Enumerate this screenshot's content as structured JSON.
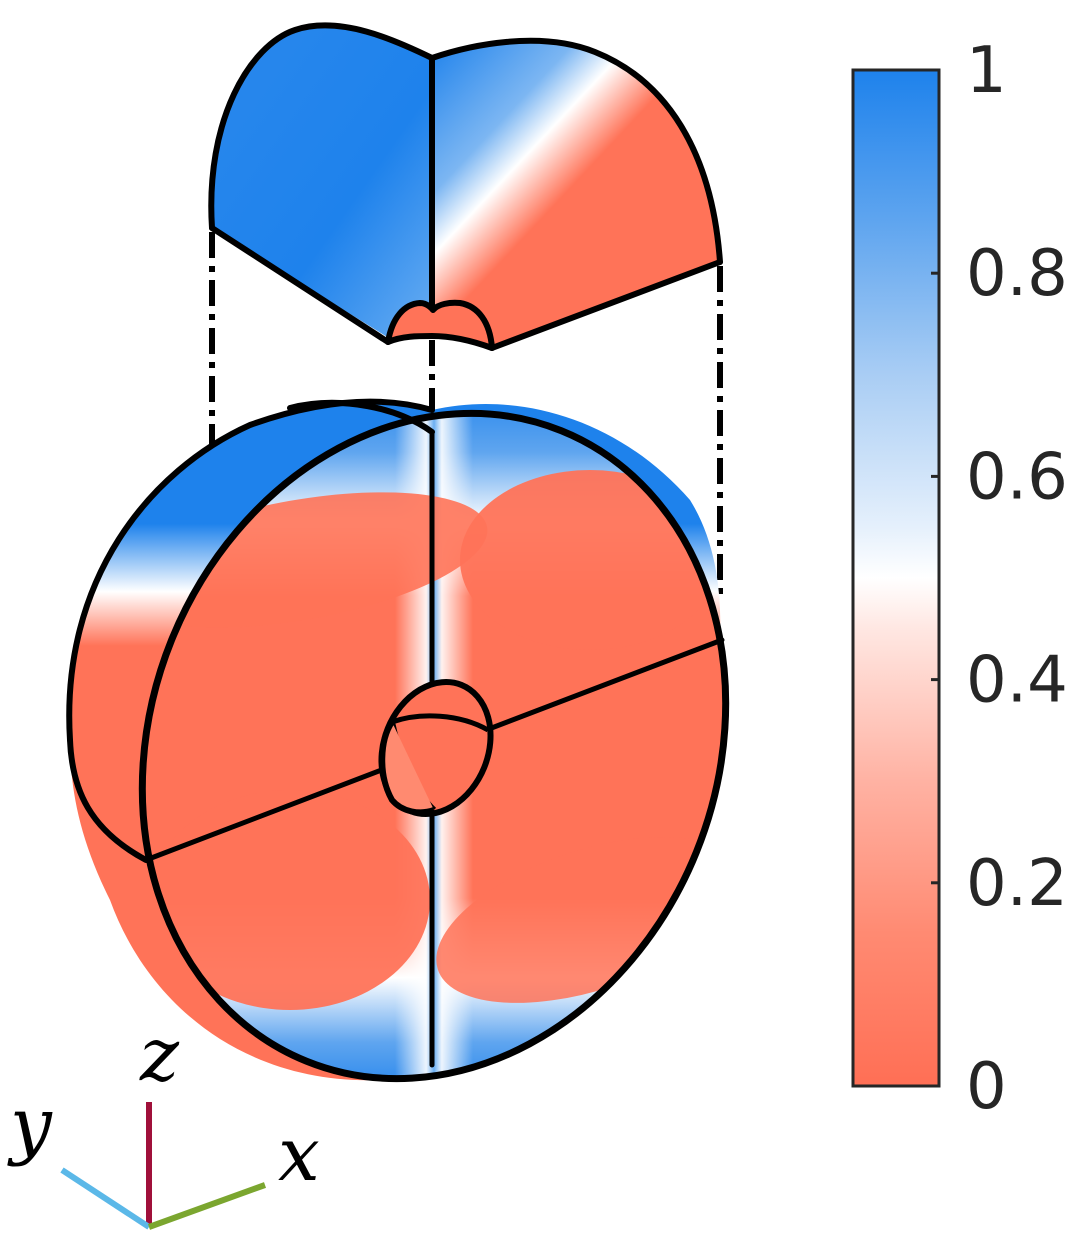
{
  "colorbar": {
    "ticks": [
      "0",
      "0.2",
      "0.4",
      "0.6",
      "0.8",
      "1"
    ],
    "tick_values": [
      0,
      0.2,
      0.4,
      0.6,
      0.8,
      1
    ],
    "min_color": "#ff6f55",
    "mid_color": "#ffffff",
    "max_color": "#1e82ec"
  },
  "axes": {
    "x": {
      "label": "x",
      "color": "#7ba62f"
    },
    "y": {
      "label": "y",
      "color": "#5bb8e8"
    },
    "z": {
      "label": "z",
      "color": "#a0103a"
    }
  },
  "colors": {
    "red": "#ff7358",
    "blue": "#1e82ec",
    "outline": "#000000"
  }
}
